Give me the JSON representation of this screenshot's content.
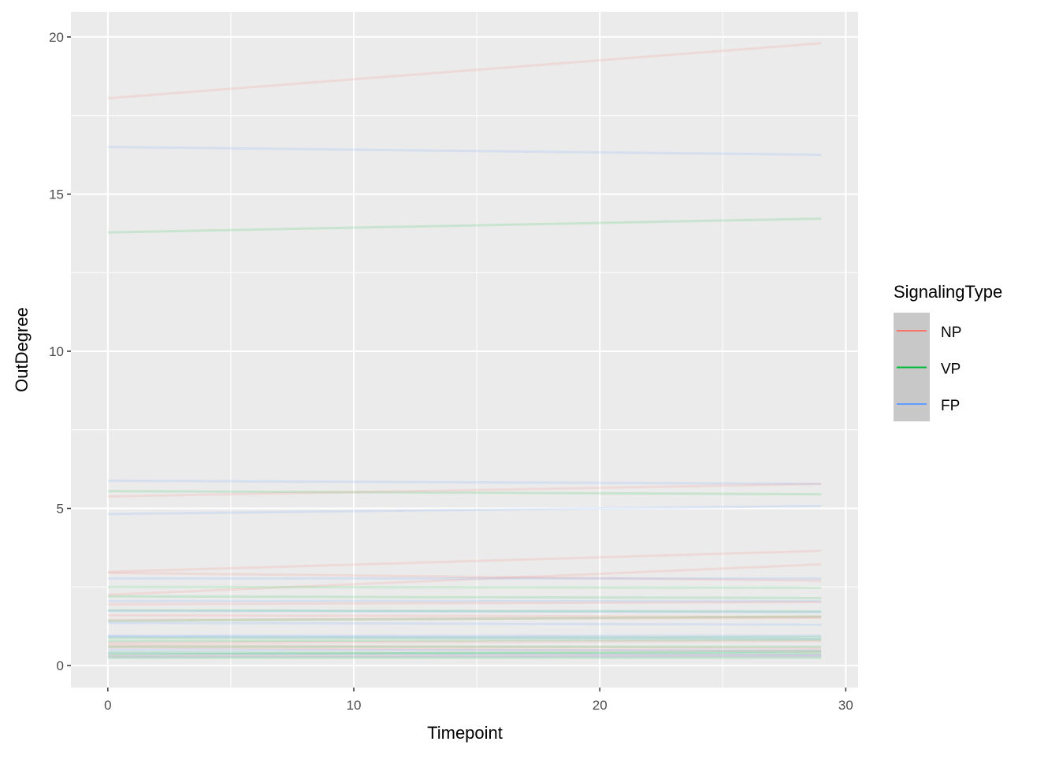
{
  "chart_data": {
    "type": "line",
    "title": "",
    "xlabel": "Timepoint",
    "ylabel": "OutDegree",
    "xlim": [
      -1.5,
      30.5
    ],
    "ylim": [
      -0.7,
      20.8
    ],
    "x_ticks": [
      0,
      10,
      20,
      30
    ],
    "y_ticks": [
      0,
      5,
      10,
      15,
      20
    ],
    "grid": true,
    "line_alpha": 0.15,
    "legend": {
      "title": "SignalingType",
      "position": "right",
      "entries": [
        {
          "label": "NP",
          "color": "#F8766D"
        },
        {
          "label": "VP",
          "color": "#00BA38"
        },
        {
          "label": "FP",
          "color": "#619CFF"
        }
      ]
    },
    "lines": [
      {
        "group": "NP",
        "x": [
          0,
          29
        ],
        "y": [
          18.05,
          19.8
        ]
      },
      {
        "group": "FP",
        "x": [
          0,
          29
        ],
        "y": [
          16.5,
          16.25
        ]
      },
      {
        "group": "VP",
        "x": [
          0,
          29
        ],
        "y": [
          13.78,
          14.22
        ]
      },
      {
        "group": "FP",
        "x": [
          0,
          29
        ],
        "y": [
          5.88,
          5.78
        ]
      },
      {
        "group": "VP",
        "x": [
          0,
          29
        ],
        "y": [
          5.55,
          5.45
        ]
      },
      {
        "group": "NP",
        "x": [
          0,
          29
        ],
        "y": [
          5.38,
          5.78
        ]
      },
      {
        "group": "FP",
        "x": [
          0,
          29
        ],
        "y": [
          4.82,
          5.08
        ]
      },
      {
        "group": "NP",
        "x": [
          0,
          29
        ],
        "y": [
          2.98,
          3.65
        ]
      },
      {
        "group": "NP",
        "x": [
          0,
          29
        ],
        "y": [
          2.25,
          3.22
        ]
      },
      {
        "group": "NP",
        "x": [
          0,
          29
        ],
        "y": [
          2.95,
          2.7
        ]
      },
      {
        "group": "FP",
        "x": [
          0,
          29
        ],
        "y": [
          2.77,
          2.77
        ]
      },
      {
        "group": "VP",
        "x": [
          0,
          29
        ],
        "y": [
          2.5,
          2.48
        ]
      },
      {
        "group": "VP",
        "x": [
          0,
          29
        ],
        "y": [
          2.2,
          2.15
        ]
      },
      {
        "group": "FP",
        "x": [
          0,
          29
        ],
        "y": [
          2.05,
          2.05
        ]
      },
      {
        "group": "NP",
        "x": [
          0,
          29
        ],
        "y": [
          1.95,
          2.02
        ]
      },
      {
        "group": "VP",
        "x": [
          0,
          29
        ],
        "y": [
          1.76,
          1.72
        ]
      },
      {
        "group": "FP",
        "x": [
          0,
          29
        ],
        "y": [
          1.74,
          1.7
        ]
      },
      {
        "group": "NP",
        "x": [
          0,
          29
        ],
        "y": [
          1.6,
          1.55
        ]
      },
      {
        "group": "VP",
        "x": [
          0,
          29
        ],
        "y": [
          1.42,
          1.56
        ]
      },
      {
        "group": "NP",
        "x": [
          0,
          29
        ],
        "y": [
          1.45,
          1.52
        ]
      },
      {
        "group": "FP",
        "x": [
          0,
          29
        ],
        "y": [
          1.36,
          1.3
        ]
      },
      {
        "group": "FP",
        "x": [
          0,
          29
        ],
        "y": [
          0.95,
          0.95
        ]
      },
      {
        "group": "VP",
        "x": [
          0,
          29
        ],
        "y": [
          0.88,
          0.9
        ]
      },
      {
        "group": "FP",
        "x": [
          0,
          29
        ],
        "y": [
          0.92,
          0.85
        ]
      },
      {
        "group": "VP",
        "x": [
          0,
          29
        ],
        "y": [
          0.78,
          0.82
        ]
      },
      {
        "group": "NP",
        "x": [
          0,
          29
        ],
        "y": [
          0.72,
          0.78
        ]
      },
      {
        "group": "NP",
        "x": [
          0,
          29
        ],
        "y": [
          0.65,
          0.55
        ]
      },
      {
        "group": "NP",
        "x": [
          0,
          29
        ],
        "y": [
          0.58,
          0.45
        ]
      },
      {
        "group": "VP",
        "x": [
          0,
          29
        ],
        "y": [
          0.6,
          0.6
        ]
      },
      {
        "group": "FP",
        "x": [
          0,
          29
        ],
        "y": [
          0.5,
          0.48
        ]
      },
      {
        "group": "VP",
        "x": [
          0,
          29
        ],
        "y": [
          0.42,
          0.38
        ]
      },
      {
        "group": "FP",
        "x": [
          0,
          29
        ],
        "y": [
          0.38,
          0.35
        ]
      },
      {
        "group": "VP",
        "x": [
          0,
          29
        ],
        "y": [
          0.35,
          0.45
        ]
      },
      {
        "group": "NP",
        "x": [
          0,
          29
        ],
        "y": [
          0.3,
          0.32
        ]
      },
      {
        "group": "FP",
        "x": [
          0,
          29
        ],
        "y": [
          0.28,
          0.3
        ]
      },
      {
        "group": "VP",
        "x": [
          0,
          29
        ],
        "y": [
          0.25,
          0.25
        ]
      }
    ]
  }
}
